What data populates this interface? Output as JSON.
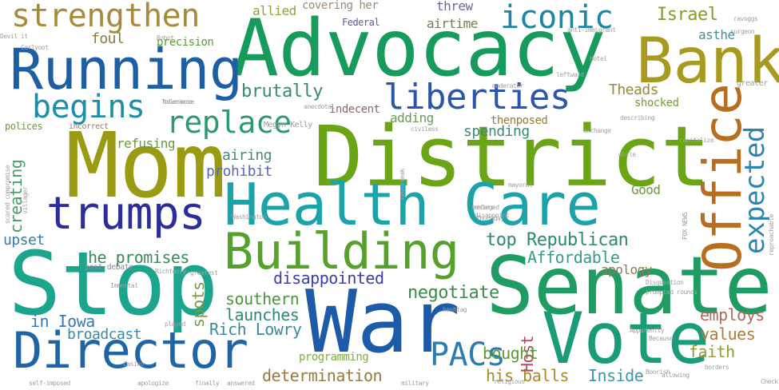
{
  "words": [
    {
      "text": "Advocacy",
      "color": "#179b5d"
    },
    {
      "text": "District",
      "color": "#6aa515"
    },
    {
      "text": "Health Care",
      "color": "#1aa3a9"
    },
    {
      "text": "Senate",
      "color": "#1e9c63"
    },
    {
      "text": "Stop",
      "color": "#1ba58c"
    },
    {
      "text": "Mom",
      "color": "#9a9b13"
    },
    {
      "text": "War",
      "color": "#1d5aa8"
    },
    {
      "text": "Vote",
      "color": "#1a9c78"
    },
    {
      "text": "Running",
      "color": "#1e5fa3"
    },
    {
      "text": "Bank",
      "color": "#a79a1e"
    },
    {
      "text": "Director",
      "color": "#1e64a6"
    },
    {
      "text": "Building",
      "color": "#56a02c"
    },
    {
      "text": "trumps",
      "color": "#2c2c9b"
    },
    {
      "text": "Office",
      "color": "#b76f1f"
    },
    {
      "text": "liberties",
      "color": "#2a55a8"
    },
    {
      "text": "strengthen",
      "color": "#a78a3a"
    },
    {
      "text": "iconic",
      "color": "#1e86a3"
    },
    {
      "text": "replace",
      "color": "#2c9a6e"
    },
    {
      "text": "begins",
      "color": "#1f8fa8"
    },
    {
      "text": "expected",
      "color": "#2a85b3"
    },
    {
      "text": "PACs",
      "color": "#2f7bb0"
    },
    {
      "text": "Israel",
      "color": "#8a9a2a"
    },
    {
      "text": "top Republican",
      "color": "#2e8a6e"
    },
    {
      "text": "brutally",
      "color": "#3a8a6a"
    },
    {
      "text": "disappointed",
      "color": "#3d3db0"
    },
    {
      "text": "negotiate",
      "color": "#3d8a4a"
    },
    {
      "text": "Affordable",
      "color": "#3a9a8a"
    },
    {
      "text": "he promises",
      "color": "#3a8a5a"
    },
    {
      "text": "southern",
      "color": "#4a9a3a"
    },
    {
      "text": "launches",
      "color": "#2a8a7a"
    },
    {
      "text": "Rich Lowry",
      "color": "#3a8a9a"
    },
    {
      "text": "in Iowa",
      "color": "#3a7ab0"
    },
    {
      "text": "broadcast",
      "color": "#3a8aaa"
    },
    {
      "text": "determination",
      "color": "#9a7a3a"
    },
    {
      "text": "his balls",
      "color": "#a88a2a"
    },
    {
      "text": "Inside",
      "color": "#3a9aaa"
    },
    {
      "text": "faith",
      "color": "#9a9a3a"
    },
    {
      "text": "values",
      "color": "#b07a3a"
    },
    {
      "text": "employs",
      "color": "#b06a5a"
    },
    {
      "text": "Host",
      "color": "#b04a5a"
    },
    {
      "text": "bought",
      "color": "#5a9a3a"
    },
    {
      "text": "programming",
      "color": "#7ab03a"
    },
    {
      "text": "spots",
      "color": "#7a9a4a"
    },
    {
      "text": "apology",
      "color": "#8a7a5a"
    },
    {
      "text": "Good",
      "color": "#6a9a3a"
    },
    {
      "text": "upset",
      "color": "#3a7aaa"
    },
    {
      "text": "creating",
      "color": "#4a9a6a"
    },
    {
      "text": "prohibit",
      "color": "#5a6ab0"
    },
    {
      "text": "airing",
      "color": "#4a8a7a"
    },
    {
      "text": "refusing",
      "color": "#6a9a3a"
    },
    {
      "text": "spending",
      "color": "#3a8a7a"
    },
    {
      "text": "adding",
      "color": "#6a9a5a"
    },
    {
      "text": "thenposed",
      "color": "#9a7a3a"
    },
    {
      "text": "indecent",
      "color": "#8a6a6a"
    },
    {
      "text": "Theads",
      "color": "#9a8a3a"
    },
    {
      "text": "shocked",
      "color": "#7a9a3a"
    },
    {
      "text": "asthe",
      "color": "#4a8a9a"
    },
    {
      "text": "allied",
      "color": "#8aa33a"
    },
    {
      "text": "covering her",
      "color": "#9a8a7a"
    },
    {
      "text": "threw",
      "color": "#6a6a9a"
    },
    {
      "text": "airtime",
      "color": "#7a7a5a"
    },
    {
      "text": "Federal",
      "color": "#5a5aa0"
    },
    {
      "text": "foul",
      "color": "#8a7a3a"
    },
    {
      "text": "precision",
      "color": "#5aa03a"
    },
    {
      "text": "polices",
      "color": "#6a9a3a"
    },
    {
      "text": "incorrect",
      "color": "#9a7a7a"
    },
    {
      "text": "post-debate",
      "color": "#8a8a9a"
    },
    {
      "text": "Megyn Kelly",
      "color": "#9a9a9a"
    },
    {
      "text": "tolerance",
      "color": "#a0a0a0"
    },
    {
      "text": "anti-immigrant",
      "color": "#a0a0a0"
    },
    {
      "text": "capitalize",
      "color": "#a0a0a0"
    },
    {
      "text": "exchange",
      "color": "#a0a0a0"
    },
    {
      "text": "greater",
      "color": "#a0a0a0"
    },
    {
      "text": "surgeon",
      "color": "#a0a0a0"
    },
    {
      "text": "religious",
      "color": "#a0a0a0"
    },
    {
      "text": "finally",
      "color": "#a0a0a0"
    },
    {
      "text": "apologize",
      "color": "#a0a0a0"
    },
    {
      "text": "self-imposed",
      "color": "#a0a0a0"
    },
    {
      "text": "answered",
      "color": "#a0a0a0"
    },
    {
      "text": "military",
      "color": "#a0a0a0"
    },
    {
      "text": "played",
      "color": "#a0a0a0"
    },
    {
      "text": "Casino",
      "color": "#a0a0a0"
    },
    {
      "text": "Thursday",
      "color": "#a0a0a0"
    },
    {
      "text": "greatest",
      "color": "#a0a0a0"
    },
    {
      "text": "Washington",
      "color": "#a0a0a0"
    },
    {
      "text": "hashtag",
      "color": "#a0a0a0"
    },
    {
      "text": "allowing",
      "color": "#a0a0a0"
    },
    {
      "text": "borders",
      "color": "#a0a0a0"
    },
    {
      "text": "Check",
      "color": "#a0a0a0"
    },
    {
      "text": "prompted rounds",
      "color": "#a0a0a0"
    },
    {
      "text": "Disquestion",
      "color": "#a0a0a0"
    },
    {
      "text": "describing",
      "color": "#a0a0a0"
    },
    {
      "text": "while",
      "color": "#a0a0a0"
    },
    {
      "text": "mayoral",
      "color": "#a0a0a0"
    },
    {
      "text": "besieged",
      "color": "#a0a0a0"
    },
    {
      "text": "anecdotal",
      "color": "#a0a0a0"
    },
    {
      "text": "Carlyoot",
      "color": "#a0a0a0"
    },
    {
      "text": "Devil it",
      "color": "#a0a0a0"
    },
    {
      "text": "Tolerance",
      "color": "#a0a0a0"
    },
    {
      "text": "civiless",
      "color": "#a0a0a0"
    },
    {
      "text": "refers",
      "color": "#a0a0a0"
    },
    {
      "text": "disappoint",
      "color": "#a0a0a0"
    },
    {
      "text": "Richtaory",
      "color": "#a0a0a0"
    },
    {
      "text": "Immortal",
      "color": "#a0a0a0"
    },
    {
      "text": "Robot",
      "color": "#a0a0a0"
    },
    {
      "text": "ravoggs",
      "color": "#a0a0a0"
    },
    {
      "text": "scared compromise",
      "color": "#a0a0a0"
    },
    {
      "text": "villager",
      "color": "#a0a0a0"
    },
    {
      "text": "FOX NEWS",
      "color": "#a0a0a0"
    },
    {
      "text": "newsbreak",
      "color": "#a0a0a0"
    },
    {
      "text": "moderator",
      "color": "#a0a0a0"
    },
    {
      "text": "Apparently",
      "color": "#a0a0a0"
    },
    {
      "text": "Because",
      "color": "#a0a0a0"
    },
    {
      "text": "Boorish",
      "color": "#a0a0a0"
    },
    {
      "text": "reproachable",
      "color": "#a0a0a0"
    },
    {
      "text": "leftward",
      "color": "#a0a0a0"
    },
    {
      "text": "Hotel",
      "color": "#a0a0a0"
    }
  ]
}
